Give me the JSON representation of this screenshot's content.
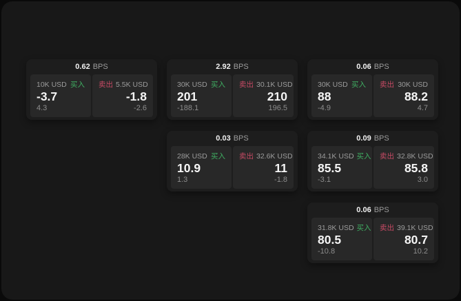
{
  "labels": {
    "bps": "BPS",
    "buy": "买入",
    "sell": "卖出"
  },
  "colors": {
    "buy_green": "#3fae62",
    "sell_red": "#c64a64",
    "window_background": "#181818",
    "card_background": "#1d1d1d",
    "panel_background": "#282828"
  },
  "cards": [
    {
      "spread": "0.62",
      "buy": {
        "amount": "10K USD",
        "price": "-3.7",
        "sub": "4.3"
      },
      "sell": {
        "amount": "5.5K USD",
        "price": "-1.8",
        "sub": "-2.6"
      }
    },
    {
      "spread": "2.92",
      "buy": {
        "amount": "30K USD",
        "price": "201",
        "sub": "-188.1"
      },
      "sell": {
        "amount": "30.1K USD",
        "price": "210",
        "sub": "196.5"
      }
    },
    {
      "spread": "0.06",
      "buy": {
        "amount": "30K USD",
        "price": "88",
        "sub": "-4.9"
      },
      "sell": {
        "amount": "30K USD",
        "price": "88.2",
        "sub": "4.7"
      }
    },
    {
      "spread": "0.03",
      "buy": {
        "amount": "28K USD",
        "price": "10.9",
        "sub": "1.3"
      },
      "sell": {
        "amount": "32.6K USD",
        "price": "11",
        "sub": "-1.8"
      }
    },
    {
      "spread": "0.09",
      "buy": {
        "amount": "34.1K USD",
        "price": "85.5",
        "sub": "-3.1"
      },
      "sell": {
        "amount": "32.8K USD",
        "price": "85.8",
        "sub": "3.0"
      }
    },
    {
      "spread": "0.06",
      "buy": {
        "amount": "31.8K USD",
        "price": "80.5",
        "sub": "-10.8"
      },
      "sell": {
        "amount": "39.1K USD",
        "price": "80.7",
        "sub": "10.2"
      }
    }
  ]
}
